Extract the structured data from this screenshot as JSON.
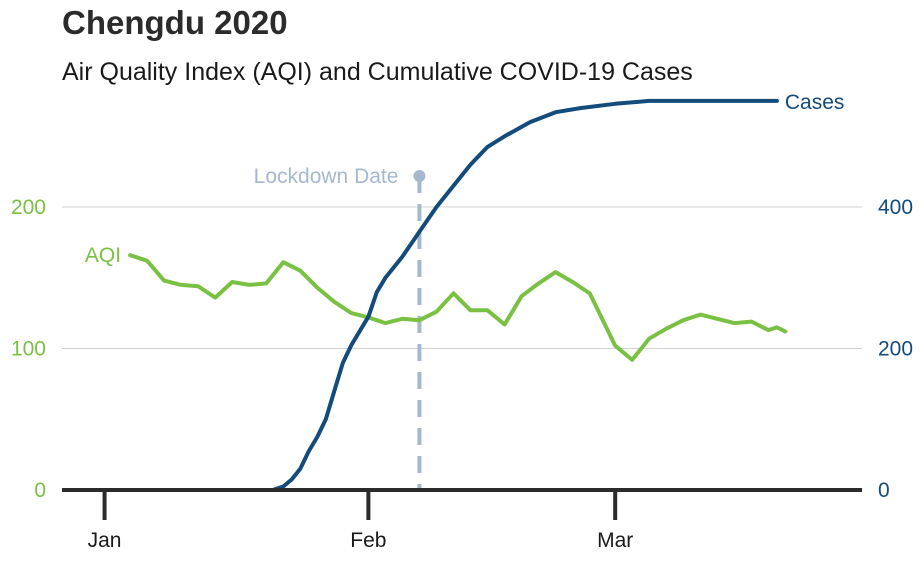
{
  "title": "Chengdu 2020",
  "subtitle": "Air Quality Index (AQI) and Cumulative COVID-19 Cases",
  "colors": {
    "aqi": "#7ac143",
    "cases": "#134b7c",
    "lockdown": "#a6b8cf",
    "axis": "#2b2b2b",
    "grid": "#d3d3d3"
  },
  "chart_data": {
    "type": "line",
    "title": "Chengdu 2020",
    "subtitle": "Air Quality Index (AQI) and Cumulative COVID-19 Cases",
    "x_axis": {
      "type": "date",
      "range": [
        "2019-12-27",
        "2020-03-30"
      ],
      "ticks": [
        {
          "date": "2020-01-01",
          "label": "Jan"
        },
        {
          "date": "2020-02-01",
          "label": "Feb"
        },
        {
          "date": "2020-03-01",
          "label": "Mar"
        }
      ]
    },
    "y_left": {
      "series": "AQI",
      "range": [
        0,
        270
      ],
      "ticks": [
        0,
        100,
        200
      ]
    },
    "y_right": {
      "series": "Cases",
      "range": [
        0,
        540
      ],
      "ticks": [
        0,
        200,
        400
      ]
    },
    "grid": "horizontal",
    "annotation": {
      "label": "Lockdown Date",
      "date": "2020-02-07"
    },
    "series": [
      {
        "name": "AQI",
        "axis": "left",
        "x": [
          "2020-01-04",
          "2020-01-06",
          "2020-01-08",
          "2020-01-10",
          "2020-01-12",
          "2020-01-14",
          "2020-01-16",
          "2020-01-18",
          "2020-01-20",
          "2020-01-22",
          "2020-01-24",
          "2020-01-26",
          "2020-01-28",
          "2020-01-30",
          "2020-02-01",
          "2020-02-03",
          "2020-02-05",
          "2020-02-07",
          "2020-02-09",
          "2020-02-11",
          "2020-02-13",
          "2020-02-15",
          "2020-02-17",
          "2020-02-19",
          "2020-02-21",
          "2020-02-23",
          "2020-02-25",
          "2020-02-27",
          "2020-03-01",
          "2020-03-03",
          "2020-03-05",
          "2020-03-07",
          "2020-03-09",
          "2020-03-11",
          "2020-03-13",
          "2020-03-15",
          "2020-03-17",
          "2020-03-19",
          "2020-03-20",
          "2020-03-21"
        ],
        "y": [
          166,
          162,
          148,
          145,
          144,
          136,
          147,
          145,
          146,
          161,
          155,
          143,
          133,
          125,
          122,
          118,
          121,
          120,
          126,
          139,
          127,
          127,
          117,
          137,
          146,
          154,
          147,
          139,
          102,
          92,
          107,
          114,
          120,
          124,
          121,
          118,
          119,
          113,
          115,
          112
        ]
      },
      {
        "name": "Cases",
        "axis": "right",
        "x": [
          "2020-01-21",
          "2020-01-22",
          "2020-01-23",
          "2020-01-24",
          "2020-01-25",
          "2020-01-26",
          "2020-01-27",
          "2020-01-28",
          "2020-01-29",
          "2020-01-30",
          "2020-01-31",
          "2020-02-01",
          "2020-02-02",
          "2020-02-03",
          "2020-02-05",
          "2020-02-07",
          "2020-02-09",
          "2020-02-11",
          "2020-02-13",
          "2020-02-15",
          "2020-02-17",
          "2020-02-20",
          "2020-02-23",
          "2020-02-26",
          "2020-03-01",
          "2020-03-05",
          "2020-03-10",
          "2020-03-15",
          "2020-03-20"
        ],
        "y": [
          1,
          5,
          15,
          30,
          55,
          75,
          100,
          140,
          180,
          205,
          225,
          245,
          280,
          300,
          330,
          365,
          400,
          430,
          460,
          485,
          500,
          520,
          534,
          540,
          546,
          550,
          550,
          550,
          550
        ]
      }
    ]
  }
}
